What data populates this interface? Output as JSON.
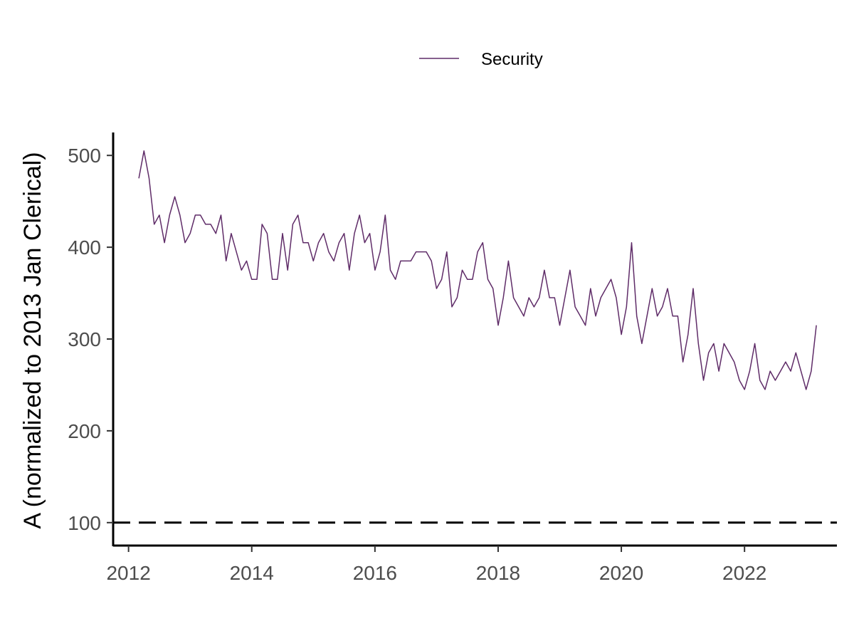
{
  "chart_data": {
    "type": "line",
    "title": "",
    "xlabel": "",
    "ylabel": "A (normalized to 2013 Jan Clerical)",
    "xlim": [
      "2011-10",
      "2023-07"
    ],
    "ylim": [
      75,
      525
    ],
    "x_ticks": [
      2012,
      2014,
      2016,
      2018,
      2020,
      2022
    ],
    "x_tick_labels": [
      "2012",
      "2014",
      "2016",
      "2018",
      "2020",
      "2022"
    ],
    "y_ticks": [
      100,
      200,
      300,
      400,
      500
    ],
    "y_tick_labels": [
      "100",
      "200",
      "300",
      "400",
      "500"
    ],
    "reference_line": {
      "y": 100,
      "style": "dashed",
      "color": "#000000"
    },
    "grid": false,
    "legend_position": "top",
    "series": [
      {
        "name": "Security",
        "color": "#5f2c68",
        "x": [
          "2012-03",
          "2012-04",
          "2012-05",
          "2012-06",
          "2012-07",
          "2012-08",
          "2012-09",
          "2012-10",
          "2012-11",
          "2012-12",
          "2013-01",
          "2013-02",
          "2013-03",
          "2013-04",
          "2013-05",
          "2013-06",
          "2013-07",
          "2013-08",
          "2013-09",
          "2013-10",
          "2013-11",
          "2013-12",
          "2014-01",
          "2014-02",
          "2014-03",
          "2014-04",
          "2014-05",
          "2014-06",
          "2014-07",
          "2014-08",
          "2014-09",
          "2014-10",
          "2014-11",
          "2014-12",
          "2015-01",
          "2015-02",
          "2015-03",
          "2015-04",
          "2015-05",
          "2015-06",
          "2015-07",
          "2015-08",
          "2015-09",
          "2015-10",
          "2015-11",
          "2015-12",
          "2016-01",
          "2016-02",
          "2016-03",
          "2016-04",
          "2016-05",
          "2016-06",
          "2016-07",
          "2016-08",
          "2016-09",
          "2016-10",
          "2016-11",
          "2016-12",
          "2017-01",
          "2017-02",
          "2017-03",
          "2017-04",
          "2017-05",
          "2017-06",
          "2017-07",
          "2017-08",
          "2017-09",
          "2017-10",
          "2017-11",
          "2017-12",
          "2018-01",
          "2018-02",
          "2018-03",
          "2018-04",
          "2018-05",
          "2018-06",
          "2018-07",
          "2018-08",
          "2018-09",
          "2018-10",
          "2018-11",
          "2018-12",
          "2019-01",
          "2019-02",
          "2019-03",
          "2019-04",
          "2019-05",
          "2019-06",
          "2019-07",
          "2019-08",
          "2019-09",
          "2019-10",
          "2019-11",
          "2019-12",
          "2020-01",
          "2020-02",
          "2020-03",
          "2020-04",
          "2020-05",
          "2020-06",
          "2020-07",
          "2020-08",
          "2020-09",
          "2020-10",
          "2020-11",
          "2020-12",
          "2021-01",
          "2021-02",
          "2021-03",
          "2021-04",
          "2021-05",
          "2021-06",
          "2021-07",
          "2021-08",
          "2021-09",
          "2021-10",
          "2021-11",
          "2021-12",
          "2022-01",
          "2022-02",
          "2022-03",
          "2022-04",
          "2022-05",
          "2022-06",
          "2022-07",
          "2022-08",
          "2022-09",
          "2022-10",
          "2022-11",
          "2022-12",
          "2023-01",
          "2023-02",
          "2023-03"
        ],
        "values": [
          475,
          505,
          475,
          425,
          435,
          405,
          435,
          455,
          435,
          405,
          415,
          435,
          435,
          425,
          425,
          415,
          435,
          385,
          415,
          395,
          375,
          385,
          365,
          365,
          425,
          415,
          365,
          365,
          415,
          375,
          425,
          435,
          405,
          405,
          385,
          405,
          415,
          395,
          385,
          405,
          415,
          375,
          415,
          435,
          405,
          415,
          375,
          395,
          435,
          375,
          365,
          385,
          385,
          385,
          395,
          395,
          395,
          385,
          355,
          365,
          395,
          335,
          345,
          375,
          365,
          365,
          395,
          405,
          365,
          355,
          315,
          345,
          385,
          345,
          335,
          325,
          345,
          335,
          345,
          375,
          345,
          345,
          315,
          345,
          375,
          335,
          325,
          315,
          355,
          325,
          345,
          355,
          365,
          345,
          305,
          335,
          405,
          325,
          295,
          325,
          355,
          325,
          335,
          355,
          325,
          325,
          275,
          305,
          355,
          295,
          255,
          285,
          295,
          265,
          295,
          285,
          275,
          255,
          245,
          265,
          295,
          255,
          245,
          265,
          255,
          265,
          275,
          265,
          285,
          265,
          245,
          265,
          315
        ]
      }
    ]
  }
}
